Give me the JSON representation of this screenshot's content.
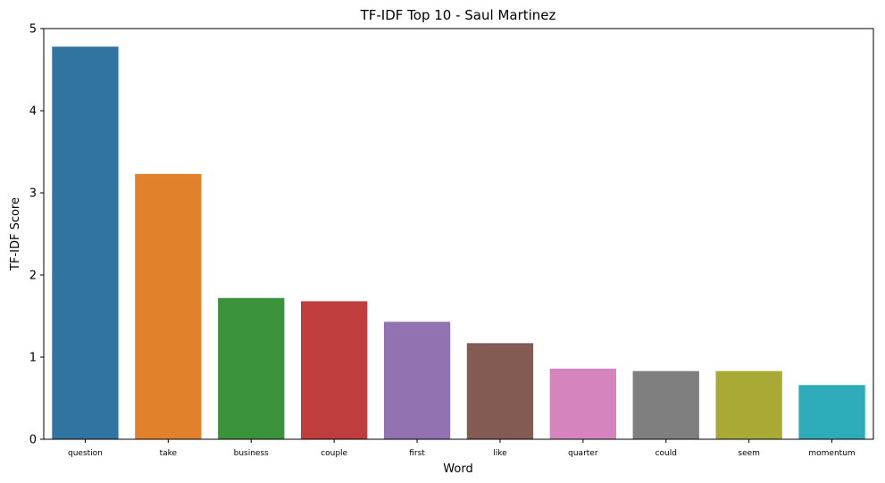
{
  "chart_data": {
    "type": "bar",
    "title": "TF-IDF Top 10 - Saul Martinez",
    "xlabel": "Word",
    "ylabel": "TF-IDF Score",
    "categories": [
      "question",
      "take",
      "business",
      "couple",
      "first",
      "like",
      "quarter",
      "could",
      "seem",
      "momentum"
    ],
    "values": [
      4.78,
      3.23,
      1.72,
      1.68,
      1.43,
      1.17,
      0.86,
      0.83,
      0.83,
      0.66
    ],
    "colors": [
      "#3274a1",
      "#e1812c",
      "#3a923a",
      "#c03d3e",
      "#9372b2",
      "#845b53",
      "#d684bd",
      "#7f7f7f",
      "#a9aa35",
      "#2eabb8"
    ],
    "yticks": [
      "0",
      "1",
      "2",
      "3",
      "4",
      "5"
    ],
    "ylim": [
      0,
      5
    ],
    "grid": false,
    "legend": "none"
  }
}
